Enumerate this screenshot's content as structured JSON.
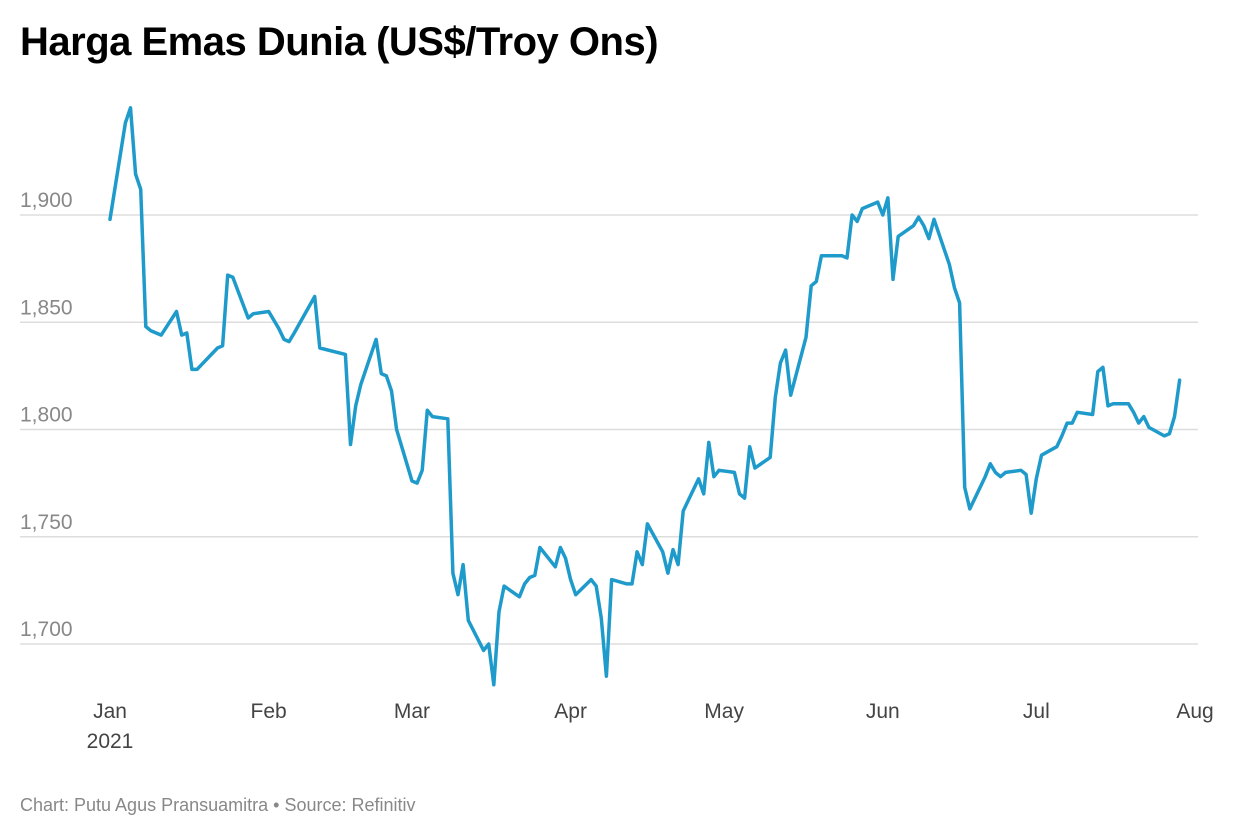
{
  "title": "Harga Emas Dunia (US$/Troy Ons)",
  "footer": {
    "credit": "Chart: Putu Agus Pransuamitra",
    "separator": "•",
    "source": "Source: Refinitiv"
  },
  "colors": {
    "line": "#1f9bcb",
    "grid": "#dddddd"
  },
  "chart_data": {
    "type": "line",
    "title": "Harga Emas Dunia (US$/Troy Ons)",
    "xlabel": "",
    "ylabel": "",
    "grid": true,
    "legend": "none",
    "ylim": [
      1680,
      1900
    ],
    "yticks": [
      1700,
      1750,
      1800,
      1850,
      1900
    ],
    "ytick_labels": [
      "1,700",
      "1,750",
      "1,800",
      "1,850",
      "1,900"
    ],
    "xlim": [
      "2021-01-01",
      "2021-08-01"
    ],
    "xticks": [
      {
        "date": "2021-01-01",
        "label": "Jan",
        "sublabel": "2021"
      },
      {
        "date": "2021-02-01",
        "label": "Feb"
      },
      {
        "date": "2021-03-01",
        "label": "Mar"
      },
      {
        "date": "2021-04-01",
        "label": "Apr"
      },
      {
        "date": "2021-05-01",
        "label": "May"
      },
      {
        "date": "2021-06-01",
        "label": "Jun"
      },
      {
        "date": "2021-07-01",
        "label": "Jul"
      },
      {
        "date": "2021-08-01",
        "label": "Aug"
      }
    ],
    "series": [
      {
        "x": [
          "2021-01-01",
          "2021-01-04",
          "2021-01-05",
          "2021-01-06",
          "2021-01-07",
          "2021-01-08",
          "2021-01-09",
          "2021-01-11",
          "2021-01-14",
          "2021-01-15",
          "2021-01-16",
          "2021-01-17",
          "2021-01-18",
          "2021-01-22",
          "2021-01-23",
          "2021-01-24",
          "2021-01-25",
          "2021-01-28",
          "2021-01-29",
          "2021-02-01",
          "2021-02-03",
          "2021-02-04",
          "2021-02-05",
          "2021-02-06",
          "2021-02-10",
          "2021-02-11",
          "2021-02-16",
          "2021-02-17",
          "2021-02-18",
          "2021-02-19",
          "2021-02-22",
          "2021-02-23",
          "2021-02-24",
          "2021-02-25",
          "2021-02-26",
          "2021-03-01",
          "2021-03-02",
          "2021-03-03",
          "2021-03-04",
          "2021-03-05",
          "2021-03-08",
          "2021-03-09",
          "2021-03-10",
          "2021-03-11",
          "2021-03-12",
          "2021-03-15",
          "2021-03-16",
          "2021-03-17",
          "2021-03-18",
          "2021-03-19",
          "2021-03-22",
          "2021-03-23",
          "2021-03-24",
          "2021-03-25",
          "2021-03-26",
          "2021-03-29",
          "2021-03-30",
          "2021-03-31",
          "2021-04-01",
          "2021-04-02",
          "2021-04-05",
          "2021-04-06",
          "2021-04-07",
          "2021-04-08",
          "2021-04-09",
          "2021-04-12",
          "2021-04-13",
          "2021-04-14",
          "2021-04-15",
          "2021-04-16",
          "2021-04-19",
          "2021-04-20",
          "2021-04-21",
          "2021-04-22",
          "2021-04-23",
          "2021-04-26",
          "2021-04-27",
          "2021-04-28",
          "2021-04-29",
          "2021-04-30",
          "2021-05-03",
          "2021-05-04",
          "2021-05-05",
          "2021-05-06",
          "2021-05-07",
          "2021-05-10",
          "2021-05-11",
          "2021-05-12",
          "2021-05-13",
          "2021-05-14",
          "2021-05-17",
          "2021-05-18",
          "2021-05-19",
          "2021-05-20",
          "2021-05-21",
          "2021-05-24",
          "2021-05-25",
          "2021-05-26",
          "2021-05-27",
          "2021-05-28",
          "2021-05-31",
          "2021-06-01",
          "2021-06-02",
          "2021-06-03",
          "2021-06-04",
          "2021-06-07",
          "2021-06-08",
          "2021-06-09",
          "2021-06-10",
          "2021-06-11",
          "2021-06-14",
          "2021-06-15",
          "2021-06-16",
          "2021-06-17",
          "2021-06-18",
          "2021-06-21",
          "2021-06-22",
          "2021-06-23",
          "2021-06-24",
          "2021-06-25",
          "2021-06-28",
          "2021-06-29",
          "2021-06-30",
          "2021-07-01",
          "2021-07-02",
          "2021-07-05",
          "2021-07-06",
          "2021-07-07",
          "2021-07-08",
          "2021-07-09",
          "2021-07-12",
          "2021-07-13",
          "2021-07-14",
          "2021-07-15",
          "2021-07-16",
          "2021-07-19",
          "2021-07-20",
          "2021-07-21",
          "2021-07-22",
          "2021-07-23",
          "2021-07-26",
          "2021-07-27",
          "2021-07-28",
          "2021-07-29"
        ],
        "y": [
          1898,
          1943,
          1950,
          1919,
          1912,
          1848,
          1846,
          1844,
          1855,
          1844,
          1845,
          1828,
          1828,
          1838,
          1839,
          1872,
          1871,
          1852,
          1854,
          1855,
          1847,
          1842,
          1841,
          1845,
          1862,
          1838,
          1835,
          1793,
          1811,
          1821,
          1842,
          1826,
          1825,
          1818,
          1800,
          1776,
          1775,
          1781,
          1809,
          1806,
          1805,
          1733,
          1723,
          1737,
          1711,
          1697,
          1700,
          1681,
          1715,
          1727,
          1722,
          1728,
          1731,
          1732,
          1745,
          1736,
          1745,
          1740,
          1730,
          1723,
          1730,
          1727,
          1712,
          1685,
          1730,
          1728,
          1728,
          1743,
          1737,
          1756,
          1743,
          1733,
          1744,
          1737,
          1762,
          1777,
          1770,
          1794,
          1778,
          1781,
          1780,
          1770,
          1768,
          1792,
          1782,
          1787,
          1815,
          1831,
          1837,
          1816,
          1843,
          1867,
          1869,
          1881,
          1881,
          1881,
          1880,
          1900,
          1897,
          1903,
          1906,
          1900,
          1908,
          1870,
          1890,
          1895,
          1899,
          1895,
          1889,
          1898,
          1877,
          1866,
          1859,
          1773,
          1763,
          1778,
          1784,
          1780,
          1778,
          1780,
          1781,
          1779,
          1761,
          1777,
          1788,
          1792,
          1797,
          1803,
          1803,
          1808,
          1807,
          1827,
          1829,
          1811,
          1812,
          1812,
          1808,
          1803,
          1806,
          1801,
          1797,
          1798,
          1806,
          1823
        ]
      }
    ]
  }
}
